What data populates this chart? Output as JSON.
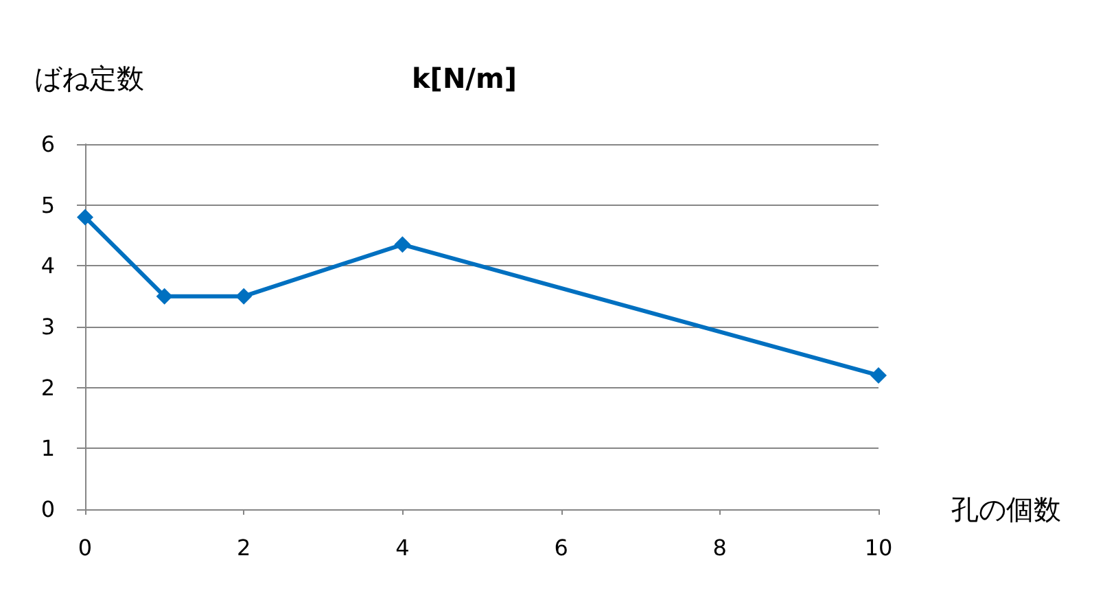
{
  "chart_data": {
    "type": "line",
    "title": "k[N/m]",
    "xlabel": "孔の個数",
    "ylabel": "ばね定数",
    "x": [
      0,
      1,
      2,
      4,
      10
    ],
    "series": [
      {
        "color": "#0070c0",
        "values": [
          4.8,
          3.5,
          3.5,
          4.35,
          2.2
        ]
      }
    ],
    "xlim": [
      0,
      10
    ],
    "xticks": [
      0,
      2,
      4,
      6,
      8,
      10
    ],
    "ylim": [
      0,
      6
    ],
    "yticks": [
      0,
      1,
      2,
      3,
      4,
      5,
      6
    ],
    "grid": "y",
    "marker": "diamond",
    "line_style": "solid"
  }
}
